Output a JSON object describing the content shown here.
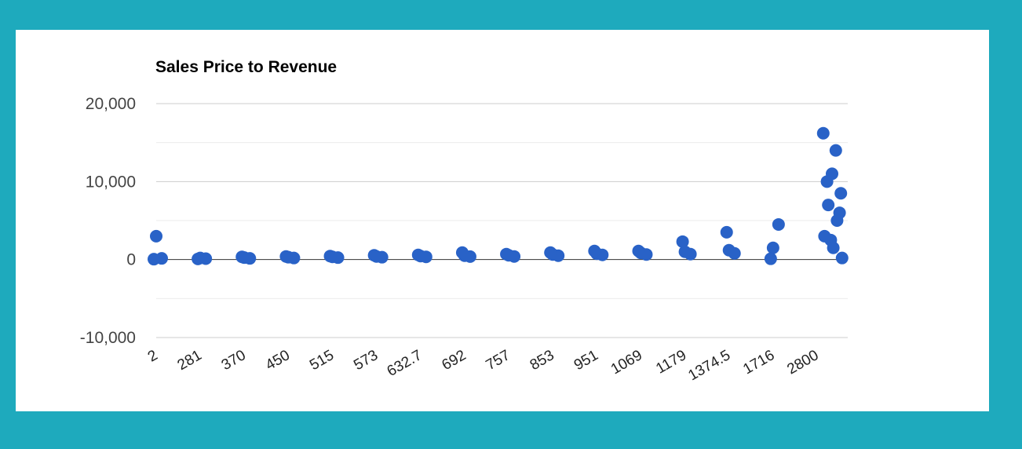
{
  "chart_data": {
    "type": "scatter",
    "title": "Sales Price to Revenue",
    "xlabel": "",
    "ylabel": "",
    "ylim": [
      -10000,
      20000
    ],
    "y_ticks": [
      "20,000",
      "10,000",
      "0",
      "-10,000"
    ],
    "x_tick_labels": [
      "2",
      "281",
      "370",
      "450",
      "515",
      "573",
      "632.7",
      "692",
      "757",
      "853",
      "951",
      "1069",
      "1179",
      "1374.5",
      "1716",
      "2800"
    ],
    "grid": true,
    "legend": "none",
    "point_color": "#2962c7",
    "series": [
      {
        "points": [
          {
            "x": "2",
            "y": 3000
          },
          {
            "x": "2",
            "y": 150
          },
          {
            "x": "2",
            "y": 50
          },
          {
            "x": "281",
            "y": 200
          },
          {
            "x": "281",
            "y": 120
          },
          {
            "x": "281",
            "y": 80
          },
          {
            "x": "370",
            "y": 250
          },
          {
            "x": "370",
            "y": 150
          },
          {
            "x": "370",
            "y": 350
          },
          {
            "x": "450",
            "y": 300
          },
          {
            "x": "450",
            "y": 200
          },
          {
            "x": "450",
            "y": 400
          },
          {
            "x": "515",
            "y": 350
          },
          {
            "x": "515",
            "y": 250
          },
          {
            "x": "515",
            "y": 450
          },
          {
            "x": "573",
            "y": 400
          },
          {
            "x": "573",
            "y": 300
          },
          {
            "x": "573",
            "y": 550
          },
          {
            "x": "632.7",
            "y": 450
          },
          {
            "x": "632.7",
            "y": 350
          },
          {
            "x": "632.7",
            "y": 600
          },
          {
            "x": "692",
            "y": 500
          },
          {
            "x": "692",
            "y": 380
          },
          {
            "x": "692",
            "y": 900
          },
          {
            "x": "757",
            "y": 550
          },
          {
            "x": "757",
            "y": 400
          },
          {
            "x": "757",
            "y": 700
          },
          {
            "x": "853",
            "y": 650
          },
          {
            "x": "853",
            "y": 500
          },
          {
            "x": "853",
            "y": 900
          },
          {
            "x": "951",
            "y": 750
          },
          {
            "x": "951",
            "y": 600
          },
          {
            "x": "951",
            "y": 1100
          },
          {
            "x": "1069",
            "y": 850
          },
          {
            "x": "1069",
            "y": 650
          },
          {
            "x": "1069",
            "y": 1100
          },
          {
            "x": "1179",
            "y": 1000
          },
          {
            "x": "1179",
            "y": 700
          },
          {
            "x": "1179",
            "y": 2300
          },
          {
            "x": "1374.5",
            "y": 1200
          },
          {
            "x": "1374.5",
            "y": 800
          },
          {
            "x": "1374.5",
            "y": 3500
          },
          {
            "x": "1716",
            "y": 1500
          },
          {
            "x": "1716",
            "y": 4500
          },
          {
            "x": "1716",
            "y": 100
          },
          {
            "x": "2800",
            "y": 2500
          },
          {
            "x": "2800",
            "y": 6000
          },
          {
            "x": "2800",
            "y": 10000
          },
          {
            "x": "2800",
            "y": 14000
          },
          {
            "x": "2800",
            "y": 16200
          },
          {
            "x": "2800",
            "y": 11000
          },
          {
            "x": "2800",
            "y": 8500
          },
          {
            "x": "2800",
            "y": 7000
          },
          {
            "x": "2800",
            "y": 5000
          },
          {
            "x": "2800",
            "y": 3000
          },
          {
            "x": "2800",
            "y": 1500
          },
          {
            "x": "2800",
            "y": 200
          }
        ]
      }
    ]
  }
}
